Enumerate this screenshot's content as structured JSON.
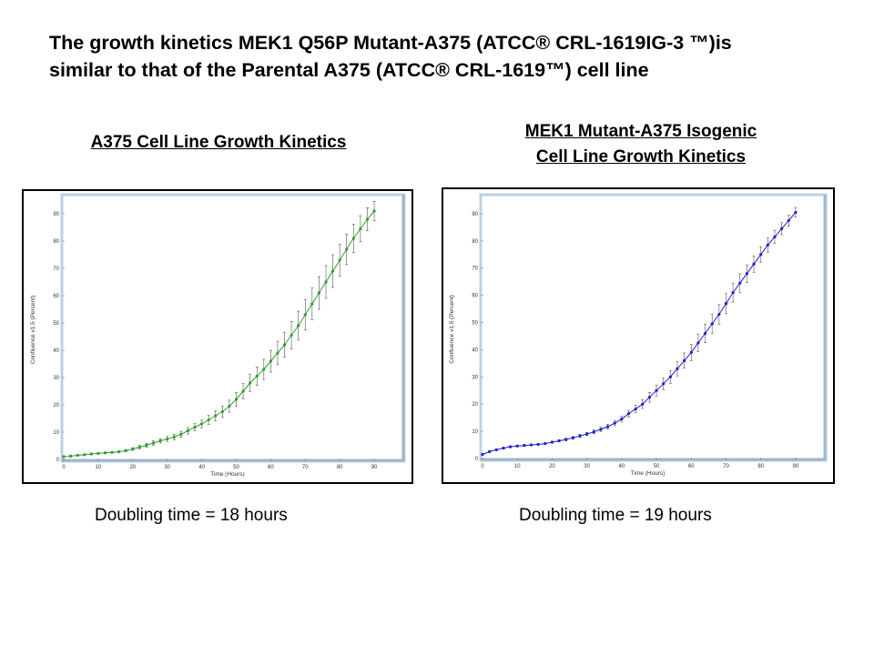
{
  "slide": {
    "title_line1": "The growth kinetics MEK1 Q56P Mutant-A375 (ATCC® CRL-1619IG-3 ™)is",
    "title_line2": "similar to that of the Parental A375 (ATCC® CRL-1619™) cell line"
  },
  "panels": [
    {
      "title_lines": [
        "A375 Cell Line Growth Kinetics"
      ],
      "caption": "Doubling time = 18 hours"
    },
    {
      "title_lines": [
        "MEK1 Mutant-A375 Isogenic",
        "Cell Line Growth Kinetics"
      ],
      "caption": "Doubling time = 19 hours"
    }
  ],
  "colors": {
    "series_a": "#2ea02e",
    "series_b": "#1f1fd6",
    "plot_frame": "#bcd0e3",
    "grid": "#e6e6e6",
    "error_bar": "#555555"
  },
  "chart_data": [
    {
      "type": "line",
      "xlabel": "Time (Hours)",
      "ylabel": "Confluence v1.5 (Percent)",
      "xlim": [
        0,
        95
      ],
      "ylim": [
        0,
        95
      ],
      "xticks": [
        0,
        10,
        20,
        30,
        40,
        50,
        60,
        70,
        80,
        90
      ],
      "yticks": [
        0,
        10,
        20,
        30,
        40,
        50,
        60,
        70,
        80,
        90
      ],
      "grid": false,
      "series": [
        {
          "x": [
            0,
            2,
            4,
            6,
            8,
            10,
            12,
            14,
            16,
            18,
            20,
            22,
            24,
            26,
            28,
            30,
            32,
            34,
            36,
            38,
            40,
            42,
            44,
            46,
            48,
            50,
            52,
            54,
            56,
            58,
            60,
            62,
            64,
            66,
            68,
            70,
            72,
            74,
            76,
            78,
            80,
            82,
            84,
            86,
            88,
            90
          ],
          "y": [
            1,
            1.2,
            1.5,
            1.7,
            2,
            2.2,
            2.4,
            2.6,
            2.8,
            3.2,
            3.8,
            4.5,
            5.2,
            6,
            6.8,
            7.5,
            8.2,
            9.2,
            10.5,
            11.8,
            13,
            14.5,
            16,
            17.5,
            19.5,
            22,
            25,
            28,
            30.5,
            33,
            36,
            39,
            42,
            45.5,
            49,
            53,
            57,
            61,
            65,
            69,
            73,
            77,
            81,
            84.5,
            88,
            91
          ],
          "err": [
            0.3,
            0.3,
            0.3,
            0.3,
            0.3,
            0.3,
            0.3,
            0.3,
            0.3,
            0.4,
            0.5,
            0.6,
            0.7,
            0.8,
            0.8,
            0.9,
            1,
            1.1,
            1.2,
            1.3,
            1.4,
            1.6,
            1.8,
            2,
            2.2,
            2.5,
            2.8,
            3.1,
            3.4,
            3.7,
            4,
            4.3,
            4.6,
            5,
            5.3,
            5.6,
            5.8,
            6,
            6,
            6,
            5.8,
            5.6,
            5.2,
            4.8,
            4.2,
            3.5
          ]
        }
      ]
    },
    {
      "type": "line",
      "xlabel": "Time (Hours)",
      "ylabel": "Confluence v1.5 (Percent)",
      "xlim": [
        0,
        95
      ],
      "ylim": [
        0,
        95
      ],
      "xticks": [
        0,
        10,
        20,
        30,
        40,
        50,
        60,
        70,
        80,
        90
      ],
      "yticks": [
        0,
        10,
        20,
        30,
        40,
        50,
        60,
        70,
        80,
        90
      ],
      "grid": false,
      "series": [
        {
          "x": [
            0,
            2,
            4,
            6,
            8,
            10,
            12,
            14,
            16,
            18,
            20,
            22,
            24,
            26,
            28,
            30,
            32,
            34,
            36,
            38,
            40,
            42,
            44,
            46,
            48,
            50,
            52,
            54,
            56,
            58,
            60,
            62,
            64,
            66,
            68,
            70,
            72,
            74,
            76,
            78,
            80,
            82,
            84,
            86,
            88,
            90
          ],
          "y": [
            1.5,
            2.5,
            3.2,
            3.8,
            4.3,
            4.6,
            4.8,
            5,
            5.2,
            5.5,
            6,
            6.5,
            7,
            7.6,
            8.3,
            9,
            9.8,
            10.7,
            11.7,
            13,
            14.5,
            16.5,
            18.2,
            20,
            22.5,
            25,
            27.5,
            30,
            33,
            36,
            39,
            42.5,
            46,
            49.5,
            53,
            57,
            61,
            64.5,
            68,
            71.5,
            75,
            78.5,
            81.5,
            84.5,
            87.5,
            90.5
          ],
          "err": [
            0.3,
            0.3,
            0.3,
            0.3,
            0.3,
            0.3,
            0.3,
            0.3,
            0.3,
            0.3,
            0.4,
            0.4,
            0.5,
            0.5,
            0.6,
            0.6,
            0.7,
            0.8,
            0.9,
            1,
            1.1,
            1.2,
            1.4,
            1.6,
            1.8,
            2,
            2.2,
            2.4,
            2.6,
            2.8,
            3,
            3.2,
            3.4,
            3.5,
            3.6,
            3.6,
            3.5,
            3.4,
            3.2,
            3,
            2.8,
            2.6,
            2.4,
            2.2,
            2,
            1.8
          ]
        }
      ]
    }
  ]
}
